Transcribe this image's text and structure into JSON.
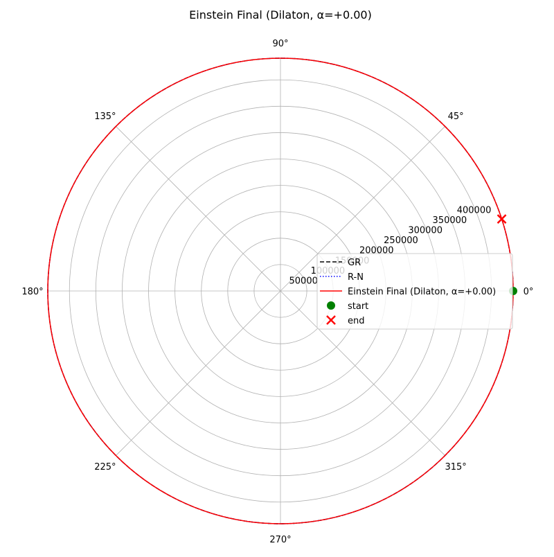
{
  "chart_data": {
    "type": "polar-line",
    "title": "Einstein Final (Dilaton, α=+0.00)",
    "theta_tick_labels": [
      "0°",
      "45°",
      "90°",
      "135°",
      "180°",
      "225°",
      "270°",
      "315°"
    ],
    "theta_tick_degrees": [
      0,
      45,
      90,
      135,
      180,
      225,
      270,
      315
    ],
    "r_tick_labels": [
      "50000",
      "100000",
      "150000",
      "200000",
      "250000",
      "300000",
      "350000",
      "400000"
    ],
    "r_tick_values": [
      50000,
      100000,
      150000,
      200000,
      250000,
      300000,
      350000,
      400000
    ],
    "rlim": [
      0,
      441000
    ],
    "grid": true,
    "legend_position": "right",
    "series": [
      {
        "name": "GR",
        "style": "dashed",
        "color": "#000000",
        "r": 441000,
        "theta_range_deg": [
          0,
          360
        ]
      },
      {
        "name": "R-N",
        "style": "dotted",
        "color": "#0000ff",
        "r": 441000,
        "theta_range_deg": [
          0,
          360
        ]
      },
      {
        "name": "Einstein Final (Dilaton, α=+0.00)",
        "style": "solid",
        "color": "#ff0000",
        "r": 441000,
        "theta_range_deg": [
          0,
          360
        ]
      }
    ],
    "markers": [
      {
        "name": "start",
        "marker": "circle",
        "color": "#008000",
        "theta_deg": 0,
        "r": 441000
      },
      {
        "name": "end",
        "marker": "x",
        "color": "#ff0000",
        "theta_deg": 18,
        "r": 441000
      }
    ]
  }
}
